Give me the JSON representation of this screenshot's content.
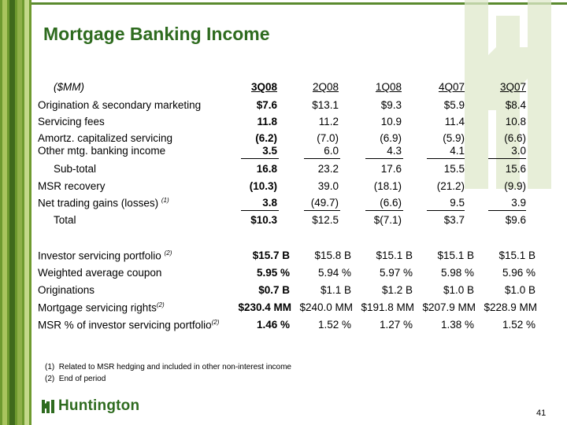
{
  "title": "Mortgage Banking Income",
  "unit_label": "($MM)",
  "columns": [
    "3Q08",
    "2Q08",
    "1Q08",
    "4Q07",
    "3Q07"
  ],
  "rows": [
    {
      "label": "Origination & secondary marketing",
      "values": [
        "$7.6",
        "$13.1",
        "$9.3",
        "$5.9",
        "$8.4"
      ]
    },
    {
      "label": "Servicing fees",
      "values": [
        "11.8",
        "11.2",
        "10.9",
        "11.4",
        "10.8"
      ]
    },
    {
      "label": "Amortz. capitalized servicing",
      "values": [
        "(6.2)",
        "(7.0)",
        "(6.9)",
        "(5.9)",
        "(6.6)"
      ]
    },
    {
      "label": "Other mtg. banking income",
      "values": [
        "3.5",
        "6.0",
        "4.3",
        "4.1",
        "3.0"
      ]
    },
    {
      "label": "Sub-total",
      "values": [
        "16.8",
        "23.2",
        "17.6",
        "15.5",
        "15.6"
      ]
    },
    {
      "label": "MSR recovery",
      "values": [
        "(10.3)",
        "39.0",
        "(18.1)",
        "(21.2)",
        "(9.9)"
      ]
    },
    {
      "label": "Net trading gains (losses)",
      "ref": "(1)",
      "values": [
        "3.8",
        "(49.7)",
        "(6.6)",
        "9.5",
        "3.9"
      ]
    },
    {
      "label": "Total",
      "values": [
        "$10.3",
        "$12.5",
        "$(7.1)",
        "$3.7",
        "$9.6"
      ]
    },
    {
      "label": "Investor servicing portfolio",
      "ref": "(2)",
      "values": [
        "$15.7 B",
        "$15.8 B",
        "$15.1 B",
        "$15.1 B",
        "$15.1 B"
      ]
    },
    {
      "label": "Weighted average coupon",
      "values": [
        "5.95 %",
        "5.94 %",
        "5.97 %",
        "5.98 %",
        "5.96 %"
      ]
    },
    {
      "label": "Originations",
      "values": [
        "$0.7 B",
        "$1.1 B",
        "$1.2 B",
        "$1.0 B",
        "$1.0 B"
      ]
    },
    {
      "label": "Mortgage servicing rights",
      "ref": "(2)",
      "values": [
        "$230.4 MM",
        "$240.0 MM",
        "$191.8 MM",
        "$207.9 MM",
        "$228.9 MM"
      ]
    },
    {
      "label": "MSR % of investor  servicing portfolio",
      "ref": "(2)",
      "values": [
        "1.46 %",
        "1.52 %",
        "1.27 %",
        "1.38 %",
        "1.52 %"
      ]
    }
  ],
  "footnotes": [
    {
      "num": "(1)",
      "text": "Related to MSR hedging and included in other non-interest income"
    },
    {
      "num": "(2)",
      "text": "End of period"
    }
  ],
  "brand": "Huntington",
  "page_number": "41",
  "colors": {
    "brand_green": "#2e6b1f",
    "stripe_light": "#8fb04a",
    "stripe_dark": "#3f6a1c"
  }
}
